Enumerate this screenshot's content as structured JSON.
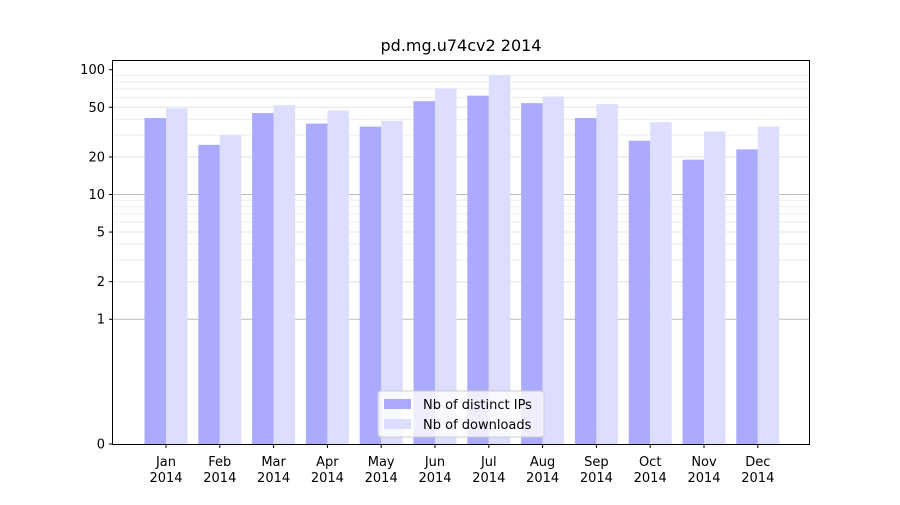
{
  "chart_data": {
    "type": "bar",
    "title": "pd.mg.u74cv2 2014",
    "xlabel": "",
    "ylabel": "",
    "yscale": "symlog",
    "ylim": [
      0,
      100
    ],
    "yticks": [
      0,
      1,
      2,
      5,
      10,
      20,
      50,
      100
    ],
    "ytick_labels": [
      "0",
      "1",
      "2",
      "5",
      "10",
      "20",
      "50",
      "100"
    ],
    "categories": [
      {
        "month": "Jan",
        "year": "2014"
      },
      {
        "month": "Feb",
        "year": "2014"
      },
      {
        "month": "Mar",
        "year": "2014"
      },
      {
        "month": "Apr",
        "year": "2014"
      },
      {
        "month": "May",
        "year": "2014"
      },
      {
        "month": "Jun",
        "year": "2014"
      },
      {
        "month": "Jul",
        "year": "2014"
      },
      {
        "month": "Aug",
        "year": "2014"
      },
      {
        "month": "Sep",
        "year": "2014"
      },
      {
        "month": "Oct",
        "year": "2014"
      },
      {
        "month": "Nov",
        "year": "2014"
      },
      {
        "month": "Dec",
        "year": "2014"
      }
    ],
    "series": [
      {
        "name": "Nb of distinct IPs",
        "color": "#aaaaff",
        "values": [
          41,
          25,
          45,
          37,
          35,
          56,
          62,
          54,
          41,
          27,
          19,
          23
        ]
      },
      {
        "name": "Nb of downloads",
        "color": "#ddddff",
        "values": [
          49,
          30,
          52,
          47,
          39,
          71,
          91,
          61,
          53,
          38,
          32,
          35
        ]
      }
    ],
    "grid": true,
    "legend_position": "bottom-center"
  }
}
